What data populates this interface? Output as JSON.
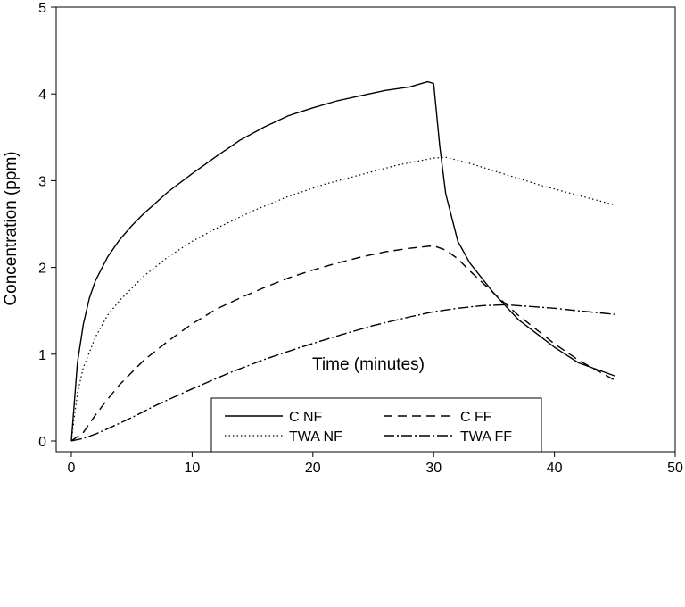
{
  "chart_data": {
    "type": "line",
    "title": "",
    "xlabel": "Time (minutes)",
    "ylabel": "Concentration (ppm)",
    "xlim": [
      0,
      50
    ],
    "ylim": [
      0,
      5
    ],
    "xticks": [
      "0",
      "10",
      "20",
      "30",
      "40",
      "50"
    ],
    "yticks": [
      "0",
      "1",
      "2",
      "3",
      "4",
      "5"
    ],
    "grid": false,
    "legend_position": "bottom",
    "series": [
      {
        "name": "C NF",
        "style": "solid",
        "x": [
          0,
          0.5,
          1,
          1.5,
          2,
          3,
          4,
          5,
          6,
          8,
          10,
          12,
          14,
          16,
          18,
          20,
          22,
          24,
          26,
          28,
          29.5,
          30,
          30.5,
          31,
          32,
          33,
          35,
          37,
          40,
          42,
          45
        ],
        "y": [
          0,
          0.9,
          1.35,
          1.65,
          1.85,
          2.12,
          2.32,
          2.48,
          2.62,
          2.87,
          3.08,
          3.28,
          3.47,
          3.62,
          3.75,
          3.84,
          3.92,
          3.98,
          4.04,
          4.08,
          4.14,
          4.12,
          3.4,
          2.85,
          2.3,
          2.05,
          1.7,
          1.4,
          1.08,
          0.9,
          0.75
        ]
      },
      {
        "name": "C FF",
        "style": "dashed",
        "x": [
          0,
          1,
          2,
          3,
          4,
          6,
          8,
          10,
          12,
          14,
          16,
          18,
          20,
          22,
          24,
          26,
          28,
          30,
          31,
          32,
          33,
          35,
          37,
          40,
          42,
          45
        ],
        "y": [
          0,
          0.1,
          0.3,
          0.48,
          0.65,
          0.93,
          1.15,
          1.35,
          1.52,
          1.65,
          1.77,
          1.88,
          1.97,
          2.05,
          2.12,
          2.18,
          2.22,
          2.25,
          2.2,
          2.1,
          1.96,
          1.7,
          1.45,
          1.12,
          0.93,
          0.7
        ]
      },
      {
        "name": "TWA NF",
        "style": "dotted",
        "x": [
          0,
          0.5,
          1,
          2,
          3,
          4,
          6,
          8,
          10,
          12,
          15,
          18,
          21,
          24,
          27,
          30,
          31,
          33,
          36,
          39,
          42,
          45
        ],
        "y": [
          0,
          0.55,
          0.85,
          1.2,
          1.45,
          1.62,
          1.9,
          2.12,
          2.3,
          2.45,
          2.65,
          2.82,
          2.96,
          3.07,
          3.18,
          3.26,
          3.27,
          3.2,
          3.07,
          2.94,
          2.83,
          2.72
        ]
      },
      {
        "name": "TWA FF",
        "style": "dashdot",
        "x": [
          0,
          1,
          2,
          3,
          5,
          7,
          10,
          13,
          16,
          19,
          22,
          25,
          28,
          30,
          32,
          34,
          36,
          38,
          40,
          42,
          45
        ],
        "y": [
          0,
          0.03,
          0.08,
          0.14,
          0.27,
          0.41,
          0.6,
          0.78,
          0.94,
          1.08,
          1.21,
          1.33,
          1.43,
          1.49,
          1.53,
          1.56,
          1.57,
          1.55,
          1.53,
          1.5,
          1.46
        ]
      }
    ]
  }
}
